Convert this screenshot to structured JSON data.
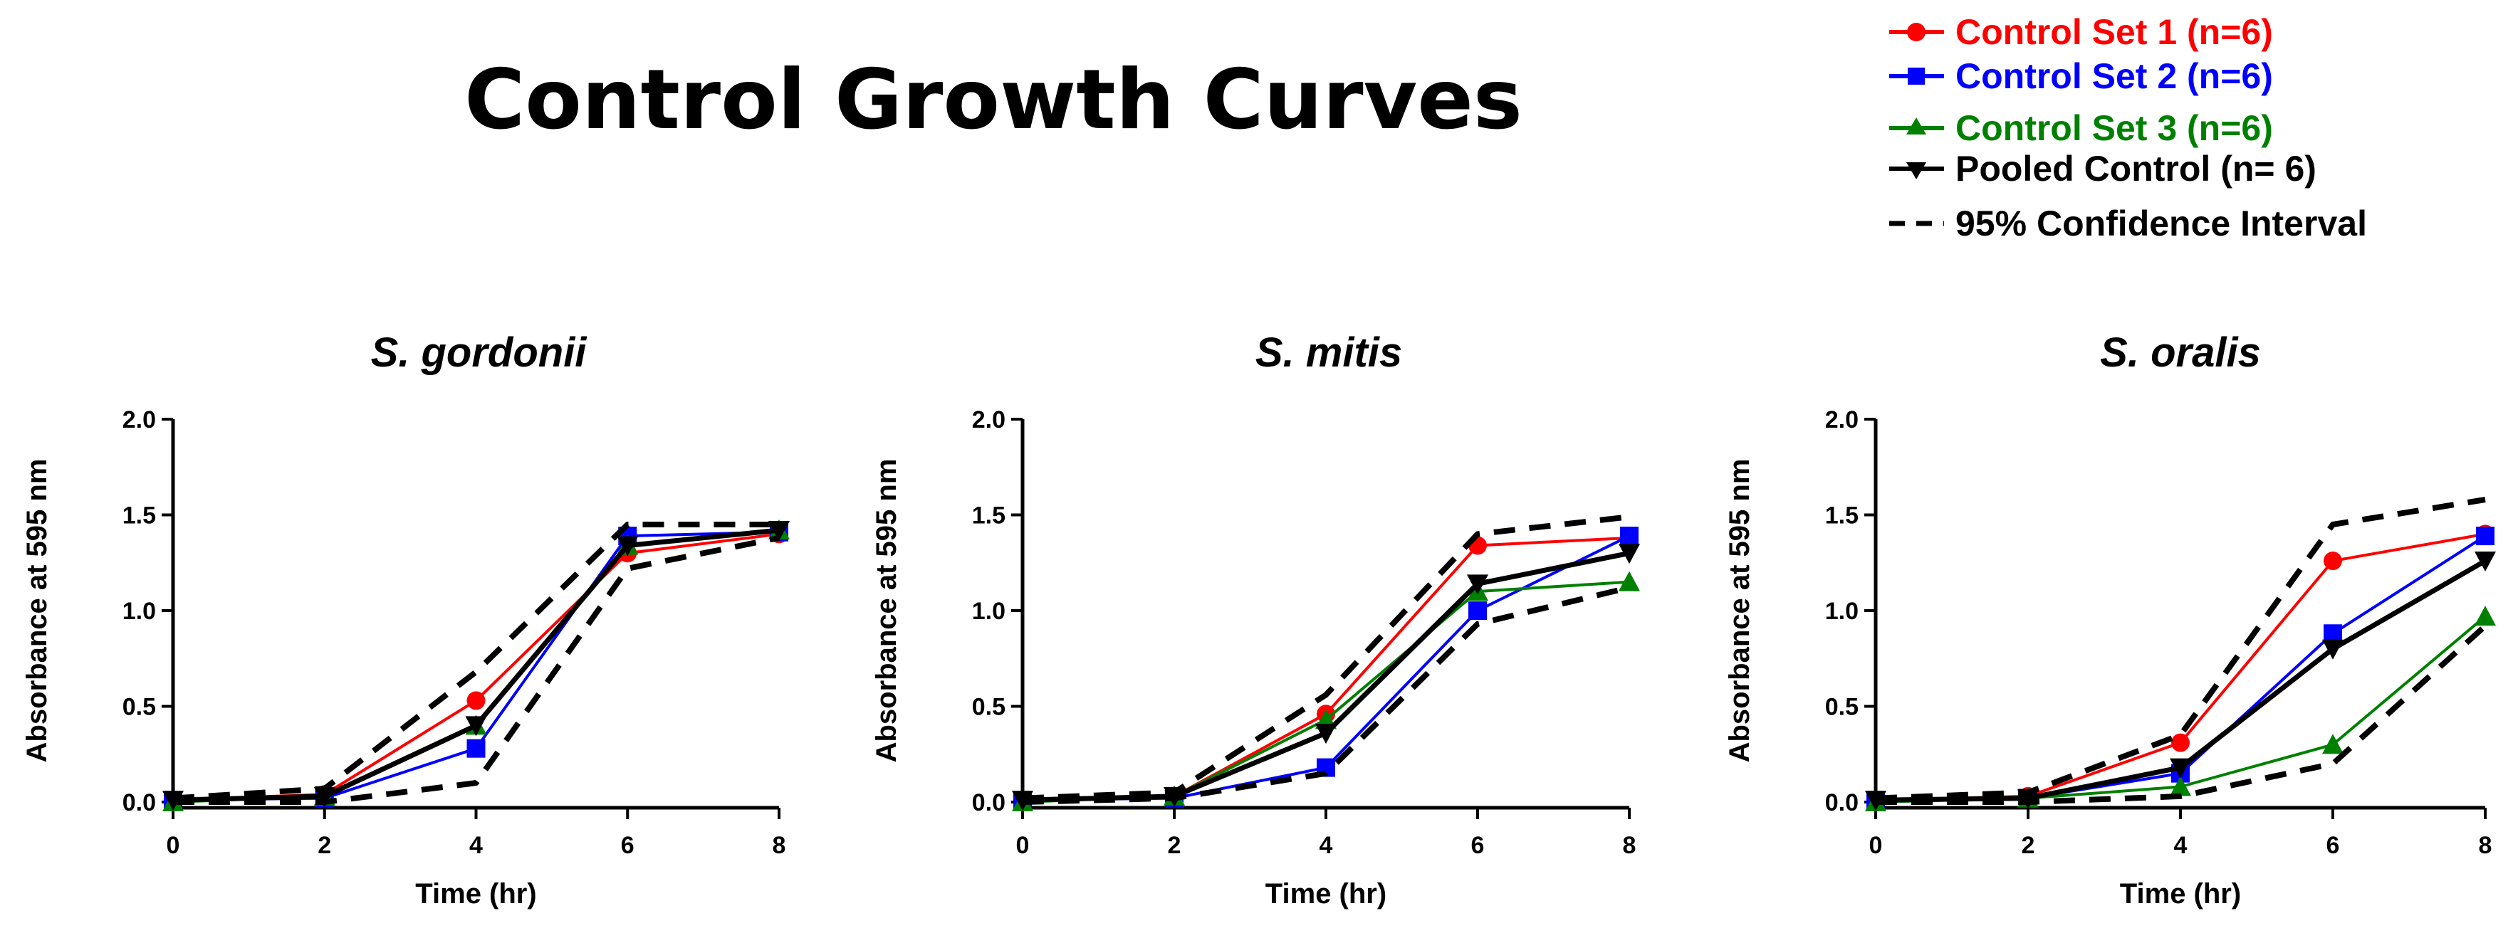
{
  "figure": {
    "title": "Control Growth Curves"
  },
  "legend": [
    {
      "label": "Control Set 1 (n=6)",
      "color": "#ff0000",
      "marker": "circle",
      "dashed": false
    },
    {
      "label": "Control Set 2 (n=6)",
      "color": "#0000ff",
      "marker": "square",
      "dashed": false
    },
    {
      "label": "Control Set 3 (n=6)",
      "color": "#008000",
      "marker": "triangle-up",
      "dashed": false
    },
    {
      "label": "Pooled Control (n= 6)",
      "color": "#000000",
      "marker": "triangle-down",
      "dashed": false
    },
    {
      "label": "95% Confidence Interval",
      "color": "#000000",
      "marker": "none",
      "dashed": true
    }
  ],
  "chart_data": [
    {
      "type": "line",
      "title": "S. gordonii",
      "xlabel": "Time (hr)",
      "ylabel": "Absorbance at 595 nm",
      "xlim": [
        0,
        8
      ],
      "ylim": [
        0,
        2.0
      ],
      "xticks": [
        "0",
        "2",
        "4",
        "6",
        "8"
      ],
      "yticks": [
        "0.0",
        "0.5",
        "1.0",
        "1.5",
        "2.0"
      ],
      "x": [
        0,
        2,
        4,
        6,
        8
      ],
      "series": [
        {
          "name": "Control Set 1 (n=6)",
          "color": "#ff0000",
          "marker": "circle",
          "values": [
            0.01,
            0.04,
            0.53,
            1.3,
            1.4
          ]
        },
        {
          "name": "Control Set 2 (n=6)",
          "color": "#0000ff",
          "marker": "square",
          "values": [
            0.01,
            0.02,
            0.28,
            1.39,
            1.41
          ]
        },
        {
          "name": "Control Set 3 (n=6)",
          "color": "#008000",
          "marker": "triangle-up",
          "values": [
            0.0,
            0.03,
            0.4,
            1.34,
            1.42
          ]
        },
        {
          "name": "Pooled Control (n= 6)",
          "color": "#000000",
          "marker": "triangle-down",
          "values": [
            0.01,
            0.03,
            0.4,
            1.34,
            1.42
          ]
        },
        {
          "name": "95% CI upper",
          "color": "#000000",
          "dashed": true,
          "values": [
            0.02,
            0.07,
            0.68,
            1.45,
            1.45
          ]
        },
        {
          "name": "95% CI lower",
          "color": "#000000",
          "dashed": true,
          "values": [
            0.0,
            0.0,
            0.1,
            1.22,
            1.38
          ]
        }
      ]
    },
    {
      "type": "line",
      "title": "S. mitis",
      "xlabel": "Time (hr)",
      "ylabel": "Absorbance at 595 nm",
      "xlim": [
        0,
        8
      ],
      "ylim": [
        0,
        2.0
      ],
      "xticks": [
        "0",
        "2",
        "4",
        "6",
        "8"
      ],
      "yticks": [
        "0.0",
        "0.5",
        "1.0",
        "1.5",
        "2.0"
      ],
      "x": [
        0,
        2,
        4,
        6,
        8
      ],
      "series": [
        {
          "name": "Control Set 1 (n=6)",
          "color": "#ff0000",
          "marker": "circle",
          "values": [
            0.01,
            0.03,
            0.46,
            1.34,
            1.38
          ]
        },
        {
          "name": "Control Set 2 (n=6)",
          "color": "#0000ff",
          "marker": "square",
          "values": [
            0.01,
            0.02,
            0.18,
            1.0,
            1.39
          ]
        },
        {
          "name": "Control Set 3 (n=6)",
          "color": "#008000",
          "marker": "triangle-up",
          "values": [
            0.0,
            0.03,
            0.43,
            1.1,
            1.15
          ]
        },
        {
          "name": "Pooled Control (n= 6)",
          "color": "#000000",
          "marker": "triangle-down",
          "values": [
            0.01,
            0.03,
            0.36,
            1.14,
            1.3
          ]
        },
        {
          "name": "95% CI upper",
          "color": "#000000",
          "dashed": true,
          "values": [
            0.02,
            0.05,
            0.56,
            1.4,
            1.49
          ]
        },
        {
          "name": "95% CI lower",
          "color": "#000000",
          "dashed": true,
          "values": [
            0.0,
            0.02,
            0.15,
            0.93,
            1.12
          ]
        }
      ]
    },
    {
      "type": "line",
      "title": "S. oralis",
      "xlabel": "Time (hr)",
      "ylabel": "Absorbance at 595 nm",
      "xlim": [
        0,
        8
      ],
      "ylim": [
        0,
        2.0
      ],
      "xticks": [
        "0",
        "2",
        "4",
        "6",
        "8"
      ],
      "yticks": [
        "0.0",
        "0.5",
        "1.0",
        "1.5",
        "2.0"
      ],
      "x": [
        0,
        2,
        4,
        6,
        8
      ],
      "series": [
        {
          "name": "Control Set 1 (n=6)",
          "color": "#ff0000",
          "marker": "circle",
          "values": [
            0.01,
            0.03,
            0.31,
            1.26,
            1.4
          ]
        },
        {
          "name": "Control Set 2 (n=6)",
          "color": "#0000ff",
          "marker": "square",
          "values": [
            0.01,
            0.02,
            0.15,
            0.88,
            1.39
          ]
        },
        {
          "name": "Control Set 3 (n=6)",
          "color": "#008000",
          "marker": "triangle-up",
          "values": [
            0.0,
            0.02,
            0.08,
            0.3,
            0.97
          ]
        },
        {
          "name": "Pooled Control (n= 6)",
          "color": "#000000",
          "marker": "triangle-down",
          "values": [
            0.01,
            0.02,
            0.18,
            0.8,
            1.26
          ]
        },
        {
          "name": "95% CI upper",
          "color": "#000000",
          "dashed": true,
          "values": [
            0.02,
            0.05,
            0.35,
            1.45,
            1.58
          ]
        },
        {
          "name": "95% CI lower",
          "color": "#000000",
          "dashed": true,
          "values": [
            0.0,
            0.0,
            0.03,
            0.2,
            0.92
          ]
        }
      ]
    }
  ]
}
